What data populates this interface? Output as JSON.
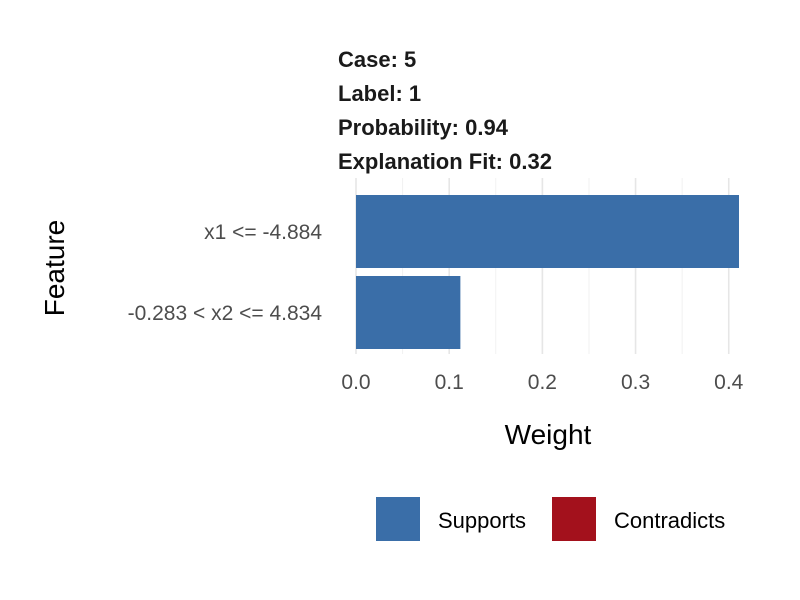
{
  "chart_data": {
    "type": "bar",
    "orientation": "horizontal",
    "title_lines": [
      "Case: 5",
      "Label: 1",
      "Probability: 0.94",
      "Explanation Fit: 0.32"
    ],
    "xlabel": "Weight",
    "ylabel": "Feature",
    "categories": [
      "x1 <= -4.884",
      "-0.283 < x2 <= 4.834"
    ],
    "values": [
      0.411,
      0.112
    ],
    "bar_kinds": [
      "Supports",
      "Supports"
    ],
    "xlim": [
      0,
      0.411
    ],
    "xticks": [
      0.0,
      0.1,
      0.2,
      0.3,
      0.4
    ],
    "xtick_labels": [
      "0.0",
      "0.1",
      "0.2",
      "0.3",
      "0.4"
    ],
    "grid": true,
    "legend": {
      "position": "bottom",
      "entries": [
        {
          "label": "Supports",
          "color": "#3a6ea8"
        },
        {
          "label": "Contradicts",
          "color": "#a3111c"
        }
      ]
    }
  },
  "colors": {
    "supports": "#3a6ea8",
    "contradicts": "#a3111c",
    "grid_major": "#e6e6e6",
    "grid_minor": "#f0f0f0",
    "tick_text": "#4d4d4d"
  }
}
